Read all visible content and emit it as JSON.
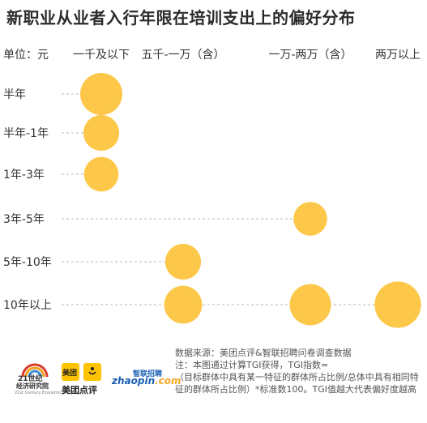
{
  "title": "新职业从业者入行年限在培训支出上的偏好分布",
  "chart_data": {
    "type": "scatter",
    "title": "新职业从业者入行年限在培训支出上的偏好分布",
    "unit_label": "单位：元",
    "x_categories": [
      "一千及以下",
      "五千-一万（含）",
      "一万-两万（含）",
      "两万以上"
    ],
    "y_categories": [
      "半年",
      "半年-1年",
      "1年-3年",
      "3年-5年",
      "5年-10年",
      "10年以上"
    ],
    "points": [
      {
        "x": "一千及以下",
        "y": "半年",
        "size": 1.0
      },
      {
        "x": "一千及以下",
        "y": "半年-1年",
        "size": 0.85
      },
      {
        "x": "一千及以下",
        "y": "1年-3年",
        "size": 0.82
      },
      {
        "x": "一万-两万（含）",
        "y": "3年-5年",
        "size": 0.8
      },
      {
        "x": "五千-一万（含）",
        "y": "5年-10年",
        "size": 0.85
      },
      {
        "x": "五千-一万（含）",
        "y": "10年以上",
        "size": 0.9
      },
      {
        "x": "一万-两万（含）",
        "y": "10年以上",
        "size": 0.98
      },
      {
        "x": "两万以上",
        "y": "10年以上",
        "size": 1.1
      }
    ],
    "bubble_color": "#fdc84a",
    "guide_color": "#b8b8b8"
  },
  "source": {
    "lines": [
      "数据来源：美团点评&智联招聘问卷调查数据",
      "注：本图通过计算TGI获得，TGI指数=",
      "（目标群体中具有某一特征的群体所占比例/总体中具有相同特征的群体所占比例）*标准数100。TGI值越大代表偏好度越高"
    ]
  },
  "logos": {
    "l21": {
      "line1": "21世纪",
      "line2": "经济研究院",
      "line3": "21st Century Economic Institute"
    },
    "meituan": {
      "box_text": "美团",
      "label": "美团点评"
    },
    "zhaopin": {
      "cn": "智联招聘",
      "en_main": "zhaopin",
      "en_suffix": ".com"
    }
  }
}
